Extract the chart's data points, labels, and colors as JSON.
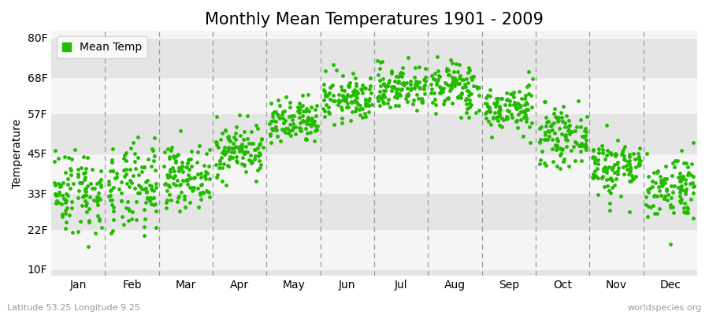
{
  "title": "Monthly Mean Temperatures 1901 - 2009",
  "ylabel": "Temperature",
  "subtitle_left": "Latitude 53.25 Longitude 9.25",
  "subtitle_right": "worldspecies.org",
  "yticks": [
    10,
    22,
    33,
    45,
    57,
    68,
    80
  ],
  "ytick_labels": [
    "10F",
    "22F",
    "33F",
    "45F",
    "57F",
    "68F",
    "80F"
  ],
  "ylim": [
    8,
    82
  ],
  "months": [
    "Jan",
    "Feb",
    "Mar",
    "Apr",
    "May",
    "Jun",
    "Jul",
    "Aug",
    "Sep",
    "Oct",
    "Nov",
    "Dec"
  ],
  "dot_color": "#22bb00",
  "bg_color": "#ebebeb",
  "stripe_light": "#f5f5f5",
  "stripe_dark": "#e5e5e5",
  "n_years": 109,
  "mean_temps_f": [
    33.8,
    33.8,
    38.0,
    46.0,
    54.0,
    61.5,
    65.0,
    65.0,
    58.5,
    50.0,
    41.0,
    35.0
  ],
  "std_temps_f": [
    6.5,
    6.8,
    4.5,
    4.0,
    3.5,
    3.5,
    3.5,
    4.0,
    3.5,
    4.0,
    4.5,
    5.0
  ],
  "title_fontsize": 15,
  "axis_fontsize": 10,
  "tick_fontsize": 10,
  "legend_fontsize": 10,
  "dot_size": 3.5
}
